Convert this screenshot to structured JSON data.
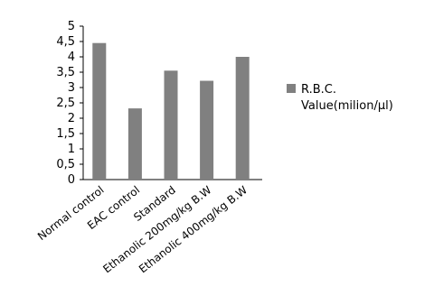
{
  "chart_data": {
    "type": "bar",
    "categories": [
      "Normal control",
      "EAC control",
      "Standard",
      "Ethanolic 200mg/kg B.W",
      "Ethanolic 400mg/kg B.W"
    ],
    "series": [
      {
        "name": "R.B.C. Value(milion/µl)",
        "values": [
          4.45,
          2.32,
          3.55,
          3.22,
          4.0
        ],
        "color": "#808080"
      }
    ],
    "y_tick_labels": [
      "0",
      "0,5",
      "1",
      "1,5",
      "2",
      "2,5",
      "3",
      "3,5",
      "4",
      "4,5",
      "5"
    ],
    "legend": {
      "line1": "R.B.C.",
      "line2": "Value(milion/µl)",
      "position": "right"
    },
    "ylim": [
      0,
      5
    ],
    "grid": false,
    "title": "",
    "xlabel": "",
    "ylabel": ""
  }
}
